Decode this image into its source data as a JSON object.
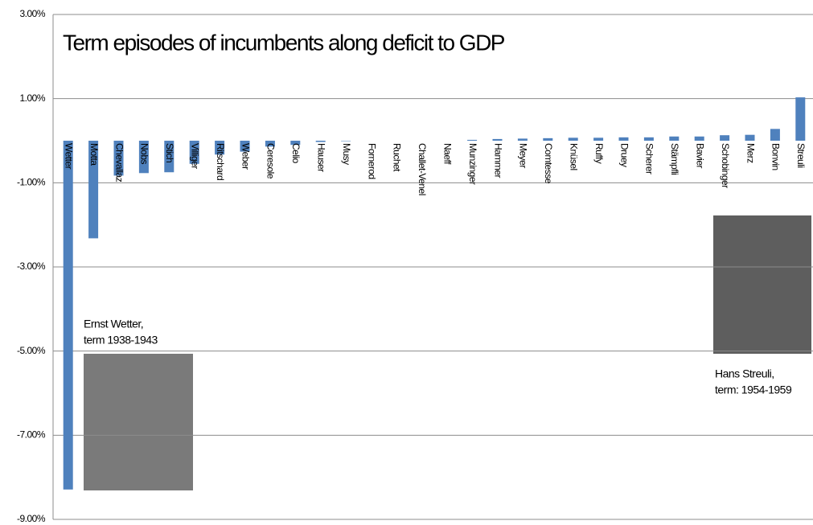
{
  "chart_data": {
    "type": "bar",
    "title": "Term episodes of incumbents along deficit to GDP",
    "categories": [
      "Wetter",
      "Motta",
      "Chevallaz",
      "Nobs",
      "Stich",
      "Villiger",
      "Ritschard",
      "Weber",
      "Ceresole",
      "Celio",
      "Hauser",
      "Musy",
      "Fornerod",
      "Ruchet",
      "Challet-Venel",
      "Naeff",
      "Munzinger",
      "Hammer",
      "Meyer",
      "Comtesse",
      "Knüsel",
      "Ruffy",
      "Druey",
      "Scherer",
      "Stämpfli",
      "Bavier",
      "Schobinger",
      "Merz",
      "Bonvin",
      "Streuli"
    ],
    "values": [
      -8.29,
      -2.32,
      -0.83,
      -0.77,
      -0.75,
      -0.55,
      -0.33,
      -0.26,
      -0.14,
      -0.1,
      -0.03,
      -0.01,
      0,
      0,
      0,
      0,
      0.02,
      0.04,
      0.05,
      0.06,
      0.07,
      0.07,
      0.08,
      0.08,
      0.1,
      0.1,
      0.13,
      0.14,
      0.28,
      1.03
    ],
    "color": "#4f81bd",
    "ylim": [
      -9,
      3
    ],
    "yticks": [
      {
        "value": -9,
        "label": "-9.00%"
      },
      {
        "value": -7,
        "label": "-7.00%"
      },
      {
        "value": -5,
        "label": "-5.00%"
      },
      {
        "value": -3,
        "label": "-3.00%"
      },
      {
        "value": -1,
        "label": "-1.00%"
      },
      {
        "value": 1,
        "label": "1.00%"
      },
      {
        "value": 3,
        "label": "3.00%"
      }
    ],
    "grid": true,
    "annotations": [
      {
        "lines": [
          "Ernst Wetter,",
          "term 1938-1943"
        ]
      },
      {
        "lines": [
          "Hans Streuli,",
          "term: 1954-1959"
        ]
      }
    ]
  }
}
